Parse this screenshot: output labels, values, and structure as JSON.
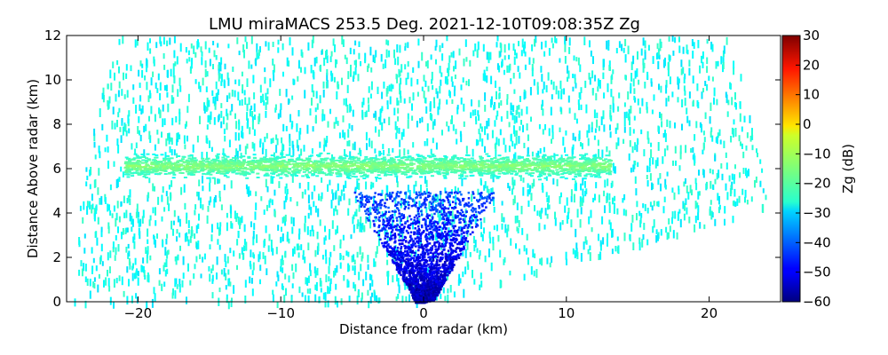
{
  "chart_data": {
    "type": "heatmap",
    "title": "LMU miraMACS 253.5 Deg. 2021-12-10T09:08:35Z  Zg",
    "xlabel": "Distance from radar (km)",
    "ylabel": "Distance Above radar  (km)",
    "xlim": [
      -25,
      25
    ],
    "ylim": [
      0,
      12
    ],
    "x_ticks": [
      -20,
      -10,
      0,
      10,
      20
    ],
    "y_ticks": [
      0,
      2,
      4,
      6,
      8,
      10,
      12
    ],
    "x_tick_labels": [
      "−20",
      "−10",
      "0",
      "10",
      "20"
    ],
    "y_tick_labels": [
      "0",
      "2",
      "4",
      "6",
      "8",
      "10",
      "12"
    ],
    "colorbar": {
      "label": "Zg (dB)",
      "colormap": "jet",
      "range": [
        -60,
        30
      ],
      "ticks": [
        30,
        20,
        10,
        0,
        -10,
        -20,
        -30,
        -40,
        -50,
        -60
      ],
      "tick_labels": [
        "30",
        "20",
        "10",
        "0",
        "−10",
        "−20",
        "−30",
        "−40",
        "−50",
        "−60"
      ]
    },
    "scan": {
      "max_range_km": 24.5,
      "left_elevation_deg": 0,
      "right_elevation_deg": 10
    },
    "features": [
      {
        "kind": "background",
        "reflectivity_dB": -25
      },
      {
        "kind": "layer",
        "height_km": 6.15,
        "x_range_km": [
          -21,
          13
        ],
        "reflectivity_dB": -18
      },
      {
        "kind": "near_radar_cone",
        "top_km": 5,
        "reflectivity_dB": -42
      }
    ]
  }
}
